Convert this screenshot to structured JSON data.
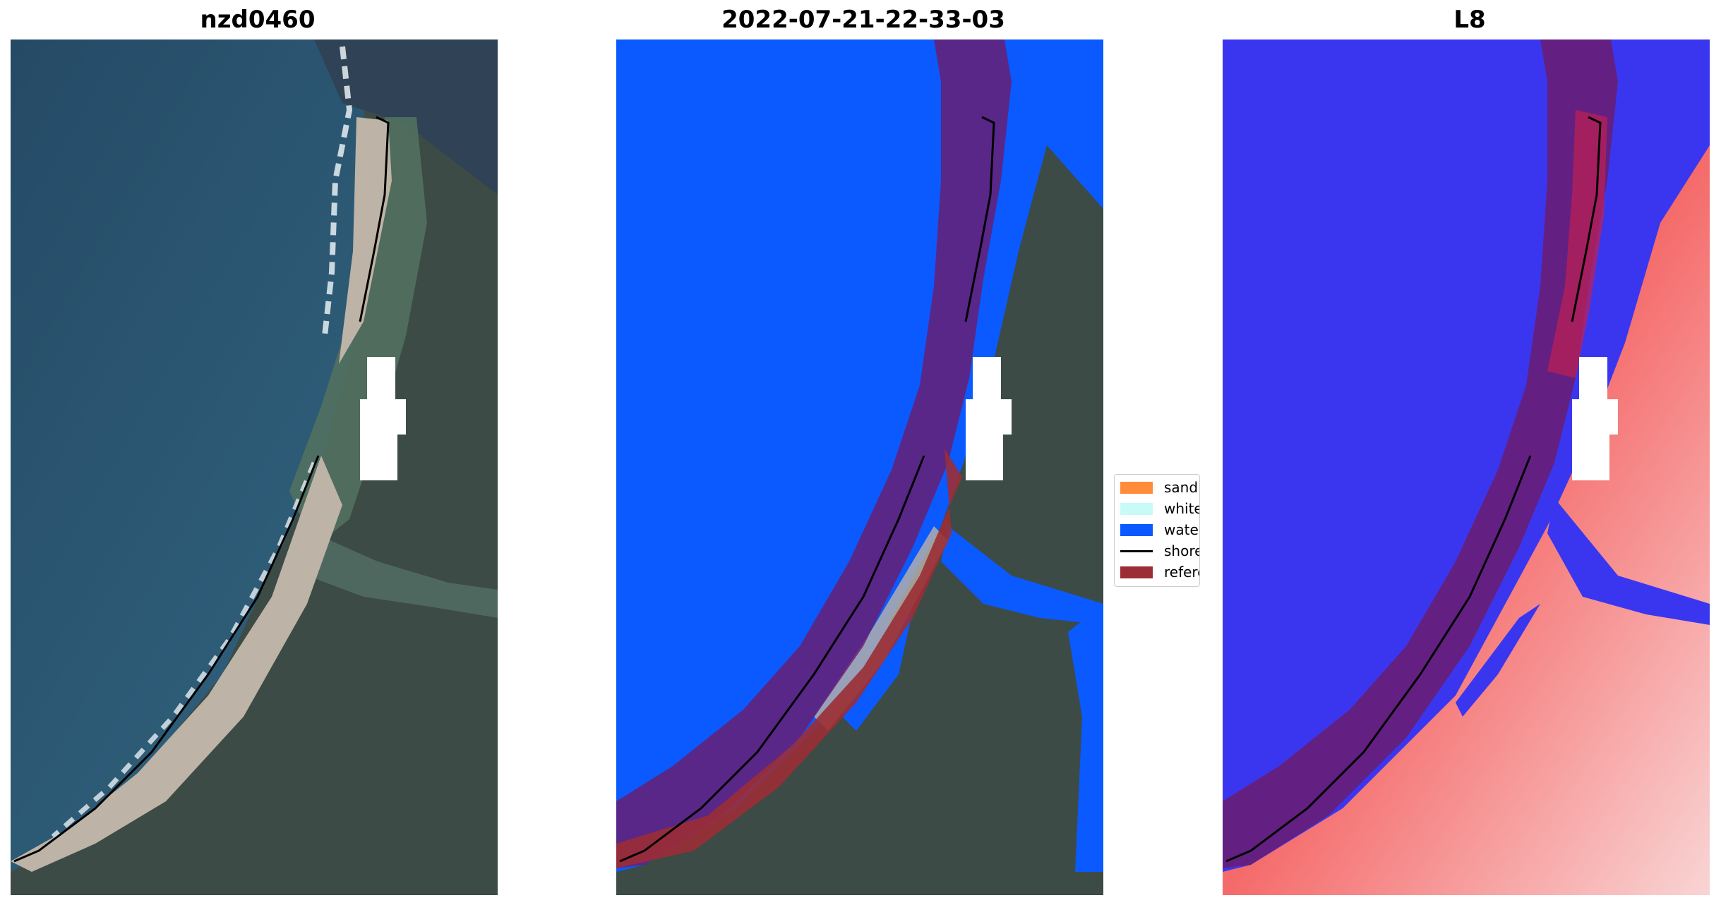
{
  "panels": [
    {
      "title": "nzd0460",
      "kind": "rgb"
    },
    {
      "title": "2022-07-21-22-33-03",
      "kind": "classified"
    },
    {
      "title": "L8",
      "kind": "index"
    }
  ],
  "legend": {
    "items": [
      {
        "label": "sand",
        "type": "patch",
        "color": "#ff8c3a"
      },
      {
        "label": "whitewater",
        "type": "patch",
        "color": "#c8fafa"
      },
      {
        "label": "water",
        "type": "patch",
        "color": "#0a5aff"
      },
      {
        "label": "shoreline",
        "type": "line",
        "color": "#000000"
      },
      {
        "label": "reference",
        "type": "patch",
        "color": "#9b2e35"
      }
    ]
  },
  "colors": {
    "ocean": "#2c5672",
    "land": "#3e4d48",
    "sand": "#bdb3a6",
    "water_class": "#0a5aff",
    "buffer": "#6b1c6e",
    "index_low": "#3a36f0",
    "index_high": "#f03a3a",
    "mask": "#ffffff"
  }
}
